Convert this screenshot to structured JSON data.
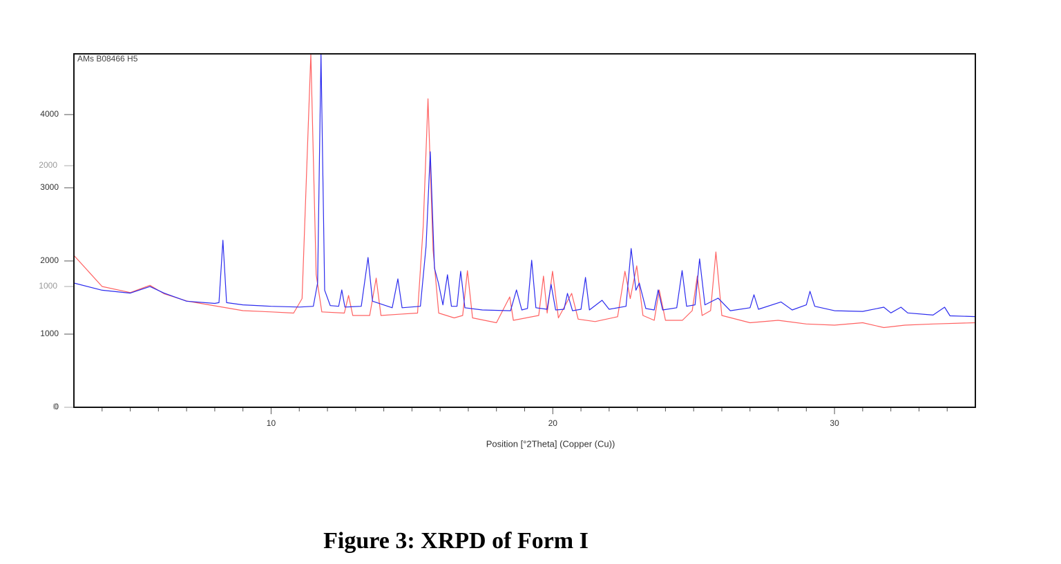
{
  "chart_data": {
    "type": "line",
    "annotation": "AMs B08466 H5",
    "xlabel": "Position [°2Theta] (Copper (Cu))",
    "caption": "Figure 3: XRPD of Form I",
    "xlim": [
      3,
      35
    ],
    "xticks": [
      10,
      20,
      30
    ],
    "xminorticks": [
      4,
      5,
      6,
      7,
      8,
      9,
      11,
      12,
      13,
      14,
      15,
      16,
      17,
      18,
      19,
      21,
      22,
      23,
      24,
      25,
      26,
      27,
      28,
      29,
      31,
      32,
      33,
      34
    ],
    "ylim": [
      0,
      4830
    ],
    "yticks": [
      0,
      1000,
      2000,
      3000,
      4000
    ],
    "y2lim": [
      0,
      2926
    ],
    "y2ticks": [
      0,
      1000,
      2000
    ],
    "series": [
      {
        "color": "#2a2aee",
        "x": [
          3.0,
          4.0,
          5.0,
          5.7,
          6.2,
          7.0,
          8.0,
          8.15,
          8.29,
          8.42,
          9.0,
          10.0,
          11.0,
          11.5,
          11.65,
          11.77,
          11.9,
          12.1,
          12.4,
          12.51,
          12.62,
          13.2,
          13.44,
          13.6,
          14.3,
          14.5,
          14.65,
          15.3,
          15.5,
          15.65,
          15.8,
          15.94,
          16.1,
          16.26,
          16.4,
          16.6,
          16.73,
          16.88,
          17.5,
          18.5,
          18.71,
          18.9,
          19.1,
          19.25,
          19.4,
          19.8,
          19.94,
          20.1,
          20.4,
          20.52,
          20.7,
          21.0,
          21.16,
          21.3,
          21.75,
          22.0,
          22.6,
          22.78,
          22.95,
          23.07,
          23.3,
          23.6,
          23.74,
          23.9,
          24.4,
          24.59,
          24.75,
          25.05,
          25.21,
          25.4,
          25.87,
          26.3,
          27.0,
          27.14,
          27.3,
          28.1,
          28.5,
          29.0,
          29.13,
          29.3,
          30.0,
          31.0,
          31.75,
          32.0,
          32.36,
          32.6,
          33.5,
          33.91,
          34.1,
          35.0
        ],
        "values": [
          1698,
          1600,
          1560,
          1650,
          1560,
          1450,
          1420,
          1430,
          2283,
          1430,
          1400,
          1380,
          1370,
          1380,
          1700,
          4830,
          1600,
          1390,
          1380,
          1604,
          1370,
          1380,
          2047,
          1450,
          1360,
          1755,
          1360,
          1380,
          2200,
          3491,
          1900,
          1698,
          1400,
          1811,
          1380,
          1380,
          1858,
          1360,
          1330,
          1320,
          1604,
          1330,
          1350,
          2009,
          1360,
          1340,
          1679,
          1330,
          1340,
          1557,
          1320,
          1340,
          1774,
          1330,
          1462,
          1340,
          1380,
          2170,
          1600,
          1698,
          1350,
          1330,
          1604,
          1330,
          1360,
          1868,
          1380,
          1400,
          2028,
          1400,
          1491,
          1320,
          1360,
          1538,
          1340,
          1440,
          1330,
          1400,
          1585,
          1380,
          1320,
          1310,
          1368,
          1290,
          1368,
          1290,
          1260,
          1368,
          1250,
          1240
        ]
      },
      {
        "color": "#ff6060",
        "axis": "y2",
        "x": [
          3.0,
          4.0,
          5.0,
          5.7,
          6.2,
          7.0,
          8.0,
          9.0,
          10.0,
          10.8,
          11.1,
          11.41,
          11.6,
          11.8,
          12.6,
          12.75,
          12.9,
          13.5,
          13.73,
          13.9,
          14.5,
          15.2,
          15.4,
          15.57,
          15.75,
          15.95,
          16.5,
          16.8,
          16.97,
          17.15,
          18.0,
          18.47,
          18.6,
          19.5,
          19.67,
          19.8,
          19.99,
          20.2,
          20.67,
          20.9,
          21.5,
          22.3,
          22.56,
          22.75,
          22.98,
          23.2,
          23.6,
          23.78,
          24.0,
          24.6,
          24.95,
          25.13,
          25.3,
          25.6,
          25.79,
          26.0,
          27.0,
          28.0,
          29.0,
          30.0,
          31.0,
          31.75,
          32.5,
          33.5,
          35.0
        ],
        "values": [
          1257,
          1000,
          950,
          1010,
          940,
          880,
          840,
          800,
          790,
          780,
          900,
          2926,
          1100,
          790,
          780,
          926,
          760,
          760,
          1069,
          760,
          770,
          780,
          1500,
          2554,
          1300,
          780,
          740,
          760,
          1131,
          740,
          700,
          914,
          720,
          760,
          1086,
          780,
          1126,
          740,
          943,
          730,
          710,
          750,
          1126,
          900,
          1171,
          760,
          720,
          971,
          720,
          720,
          800,
          1086,
          760,
          800,
          1286,
          760,
          700,
          720,
          690,
          680,
          700,
          660,
          680,
          690,
          700
        ]
      }
    ]
  }
}
